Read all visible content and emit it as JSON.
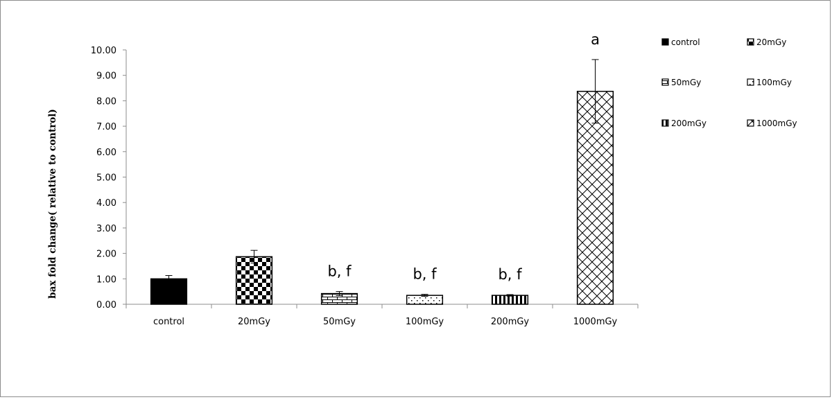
{
  "chart_data": {
    "type": "bar",
    "ylabel": "bax fold change( relative to control)",
    "xlabel": "",
    "ylim": [
      0,
      10
    ],
    "yticks": [
      "0.00",
      "1.00",
      "2.00",
      "3.00",
      "4.00",
      "5.00",
      "6.00",
      "7.00",
      "8.00",
      "9.00",
      "10.00"
    ],
    "categories": [
      "control",
      "20mGy",
      "50mGy",
      "100mGy",
      "200mGy",
      "1000mGy"
    ],
    "values": [
      1.0,
      1.87,
      0.42,
      0.35,
      0.35,
      8.37
    ],
    "error": [
      0.13,
      0.25,
      0.08,
      0.04,
      0.03,
      1.25
    ],
    "annotations": [
      "",
      "",
      "b, f",
      "b, f",
      "b, f",
      "a"
    ],
    "patterns": [
      "solid",
      "checker",
      "brick",
      "dots",
      "vstripes",
      "diagcross"
    ],
    "legend": {
      "position": "right",
      "entries": [
        "control",
        "20mGy",
        "50mGy",
        "100mGy",
        "200mGy",
        "1000mGy"
      ]
    },
    "grid": false,
    "colors": {
      "bar": "#000000",
      "axis": "#8c8c8c",
      "background": "#ffffff"
    }
  }
}
